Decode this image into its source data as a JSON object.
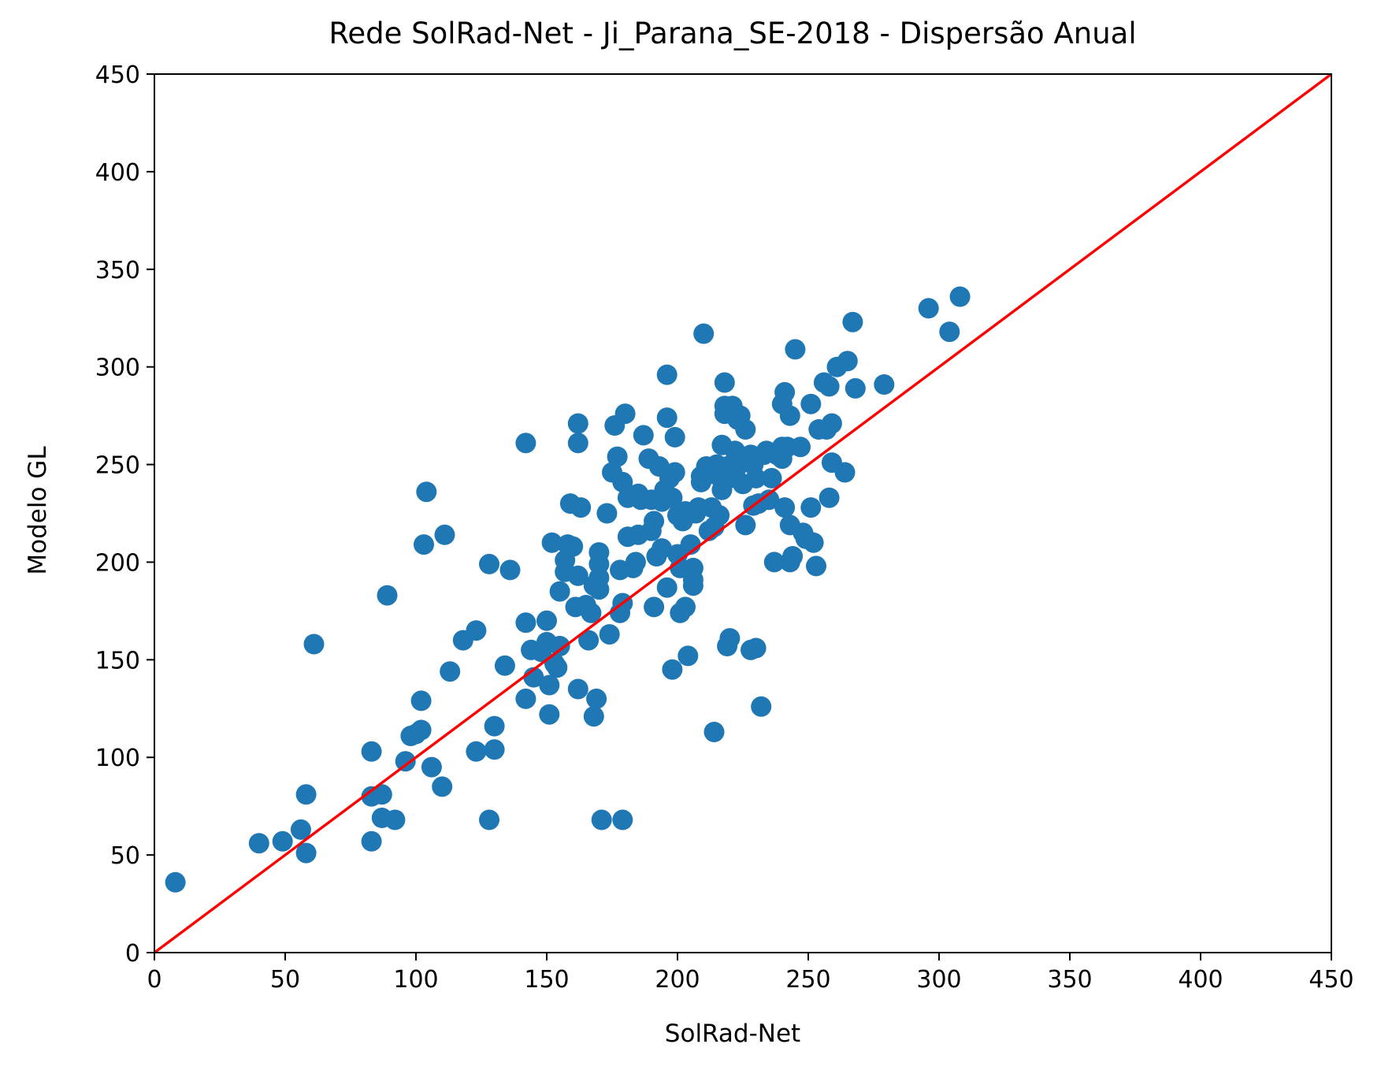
{
  "chart_data": {
    "type": "scatter",
    "title": "Rede SolRad-Net - Ji_Parana_SE-2018 - Dispersão Anual",
    "xlabel": "SolRad-Net",
    "ylabel": "Modelo GL",
    "xlim": [
      0,
      450
    ],
    "ylim": [
      0,
      450
    ],
    "xticks": [
      "0",
      "50",
      "100",
      "150",
      "200",
      "250",
      "300",
      "350",
      "400",
      "450"
    ],
    "yticks": [
      "0",
      "50",
      "100",
      "150",
      "200",
      "250",
      "300",
      "350",
      "400",
      "450"
    ],
    "grid": false,
    "marker_color": "#1f77b4",
    "reference_line": {
      "x": [
        0,
        450
      ],
      "y": [
        0,
        450
      ],
      "color": "#ff0000"
    },
    "points": [
      [
        8,
        36
      ],
      [
        40,
        56
      ],
      [
        49,
        57
      ],
      [
        56,
        63
      ],
      [
        58,
        51
      ],
      [
        58,
        81
      ],
      [
        61,
        158
      ],
      [
        83,
        80
      ],
      [
        83,
        57
      ],
      [
        83,
        103
      ],
      [
        87,
        69
      ],
      [
        87,
        81
      ],
      [
        89,
        183
      ],
      [
        92,
        68
      ],
      [
        96,
        98
      ],
      [
        98,
        111
      ],
      [
        100,
        112
      ],
      [
        102,
        114
      ],
      [
        102,
        129
      ],
      [
        103,
        209
      ],
      [
        104,
        236
      ],
      [
        106,
        95
      ],
      [
        110,
        85
      ],
      [
        111,
        214
      ],
      [
        113,
        144
      ],
      [
        118,
        160
      ],
      [
        123,
        165
      ],
      [
        123,
        103
      ],
      [
        128,
        68
      ],
      [
        128,
        199
      ],
      [
        130,
        104
      ],
      [
        130,
        116
      ],
      [
        134,
        147
      ],
      [
        136,
        196
      ],
      [
        142,
        261
      ],
      [
        142,
        130
      ],
      [
        142,
        169
      ],
      [
        144,
        155
      ],
      [
        145,
        141
      ],
      [
        148,
        154
      ],
      [
        150,
        170
      ],
      [
        150,
        159
      ],
      [
        151,
        122
      ],
      [
        151,
        137
      ],
      [
        152,
        210
      ],
      [
        153,
        148
      ],
      [
        154,
        146
      ],
      [
        155,
        157
      ],
      [
        155,
        185
      ],
      [
        157,
        201
      ],
      [
        157,
        195
      ],
      [
        158,
        209
      ],
      [
        159,
        230
      ],
      [
        160,
        208
      ],
      [
        161,
        177
      ],
      [
        162,
        193
      ],
      [
        162,
        271
      ],
      [
        162,
        261
      ],
      [
        162,
        135
      ],
      [
        163,
        228
      ],
      [
        165,
        178
      ],
      [
        166,
        160
      ],
      [
        167,
        174
      ],
      [
        168,
        121
      ],
      [
        168,
        188
      ],
      [
        169,
        130
      ],
      [
        170,
        205
      ],
      [
        170,
        199
      ],
      [
        170,
        192
      ],
      [
        170,
        186
      ],
      [
        171,
        68
      ],
      [
        173,
        225
      ],
      [
        174,
        163
      ],
      [
        175,
        246
      ],
      [
        176,
        270
      ],
      [
        177,
        254
      ],
      [
        178,
        196
      ],
      [
        178,
        174
      ],
      [
        179,
        179
      ],
      [
        179,
        68
      ],
      [
        179,
        241
      ],
      [
        180,
        276
      ],
      [
        181,
        233
      ],
      [
        181,
        213
      ],
      [
        183,
        197
      ],
      [
        184,
        200
      ],
      [
        185,
        214
      ],
      [
        185,
        235
      ],
      [
        186,
        232
      ],
      [
        187,
        265
      ],
      [
        189,
        253
      ],
      [
        190,
        232
      ],
      [
        190,
        216
      ],
      [
        191,
        177
      ],
      [
        191,
        221
      ],
      [
        192,
        203
      ],
      [
        193,
        249
      ],
      [
        194,
        231
      ],
      [
        194,
        207
      ],
      [
        195,
        237
      ],
      [
        196,
        187
      ],
      [
        196,
        296
      ],
      [
        196,
        274
      ],
      [
        197,
        243
      ],
      [
        198,
        233
      ],
      [
        198,
        145
      ],
      [
        199,
        246
      ],
      [
        199,
        264
      ],
      [
        200,
        224
      ],
      [
        200,
        204
      ],
      [
        201,
        197
      ],
      [
        201,
        174
      ],
      [
        202,
        221
      ],
      [
        203,
        226
      ],
      [
        203,
        177
      ],
      [
        204,
        152
      ],
      [
        205,
        209
      ],
      [
        206,
        197
      ],
      [
        206,
        188
      ],
      [
        206,
        191
      ],
      [
        207,
        225
      ],
      [
        208,
        228
      ],
      [
        209,
        244
      ],
      [
        209,
        241
      ],
      [
        210,
        317
      ],
      [
        211,
        249
      ],
      [
        212,
        216
      ],
      [
        212,
        245
      ],
      [
        213,
        228
      ],
      [
        214,
        113
      ],
      [
        214,
        218
      ],
      [
        215,
        250
      ],
      [
        216,
        224
      ],
      [
        217,
        242
      ],
      [
        217,
        260
      ],
      [
        217,
        237
      ],
      [
        218,
        280
      ],
      [
        218,
        292
      ],
      [
        218,
        276
      ],
      [
        219,
        157
      ],
      [
        219,
        249
      ],
      [
        220,
        243
      ],
      [
        220,
        161
      ],
      [
        221,
        280
      ],
      [
        222,
        257
      ],
      [
        222,
        245
      ],
      [
        223,
        273
      ],
      [
        224,
        275
      ],
      [
        225,
        240
      ],
      [
        225,
        251
      ],
      [
        226,
        268
      ],
      [
        226,
        219
      ],
      [
        228,
        155
      ],
      [
        228,
        255
      ],
      [
        229,
        229
      ],
      [
        229,
        250
      ],
      [
        230,
        156
      ],
      [
        230,
        243
      ],
      [
        231,
        230
      ],
      [
        232,
        126
      ],
      [
        233,
        255
      ],
      [
        234,
        257
      ],
      [
        235,
        232
      ],
      [
        236,
        243
      ],
      [
        237,
        200
      ],
      [
        238,
        255
      ],
      [
        240,
        259
      ],
      [
        240,
        281
      ],
      [
        240,
        253
      ],
      [
        241,
        287
      ],
      [
        241,
        228
      ],
      [
        242,
        259
      ],
      [
        243,
        219
      ],
      [
        243,
        275
      ],
      [
        243,
        200
      ],
      [
        244,
        203
      ],
      [
        245,
        309
      ],
      [
        247,
        259
      ],
      [
        248,
        215
      ],
      [
        249,
        212
      ],
      [
        251,
        281
      ],
      [
        251,
        228
      ],
      [
        252,
        210
      ],
      [
        253,
        198
      ],
      [
        254,
        268
      ],
      [
        256,
        292
      ],
      [
        257,
        268
      ],
      [
        258,
        290
      ],
      [
        258,
        233
      ],
      [
        259,
        271
      ],
      [
        259,
        251
      ],
      [
        261,
        300
      ],
      [
        264,
        246
      ],
      [
        265,
        303
      ],
      [
        267,
        323
      ],
      [
        268,
        289
      ],
      [
        279,
        291
      ],
      [
        296,
        330
      ],
      [
        304,
        318
      ],
      [
        308,
        336
      ]
    ]
  }
}
